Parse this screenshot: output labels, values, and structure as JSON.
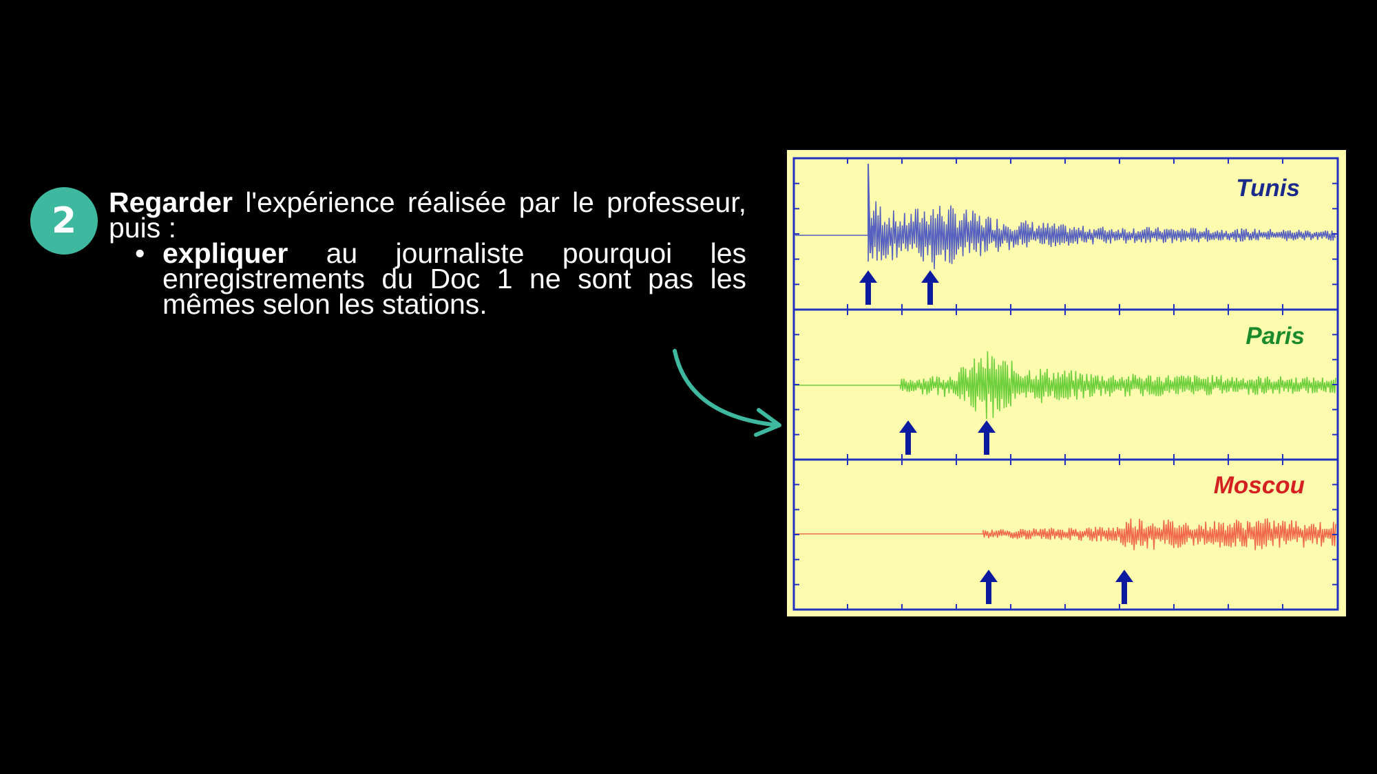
{
  "step": {
    "number": "2"
  },
  "instruction": {
    "verb1": "Regarder",
    "rest1": " l'expérience réalisée par le professeur, puis :",
    "verb2": "expliquer",
    "rest2": " au journaliste pourquoi les enregistrements du Doc 1 ne sont pas les mêmes selon les stations."
  },
  "figure": {
    "stations": [
      {
        "name": "Tunis",
        "color": "#1a2a8c",
        "trace_color": "#5560c0"
      },
      {
        "name": "Paris",
        "color": "#1a8a2a",
        "trace_color": "#6ecf3c"
      },
      {
        "name": "Moscou",
        "color": "#d42020",
        "trace_color": "#f06a4a"
      }
    ],
    "background_color": "#fdfcae",
    "axis_color": "#2030c0",
    "arrow_color": "#0c1aa0"
  },
  "accent_color": "#3fb8a0"
}
